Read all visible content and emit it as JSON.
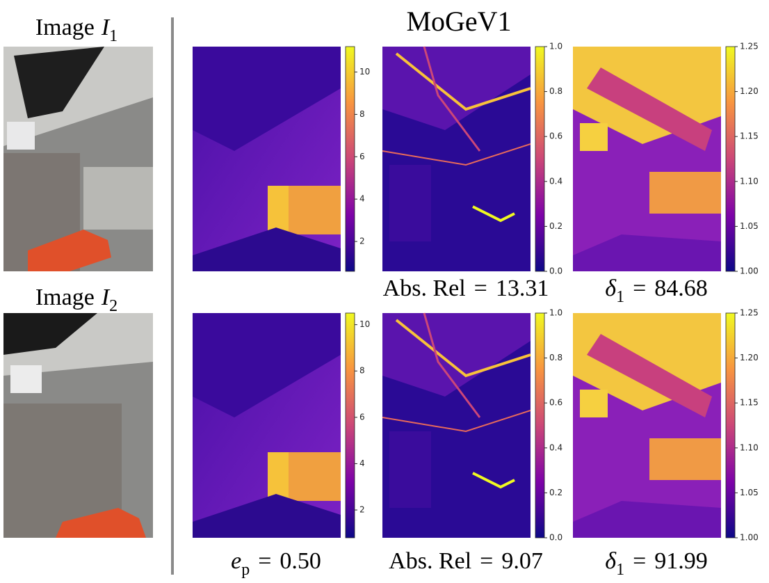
{
  "title": "MoGeV1",
  "inputs": [
    {
      "label": "Image",
      "symbol": "I",
      "subscript": "1"
    },
    {
      "label": "Image",
      "symbol": "I",
      "subscript": "2"
    }
  ],
  "rows": [
    {
      "panels": [
        {
          "colorbar": {
            "lim": [
              0.59,
              11.2
            ],
            "ticks": [
              2,
              4,
              6,
              8,
              10
            ]
          }
        },
        {
          "colorbar": {
            "lim": [
              0,
              1
            ],
            "ticks": [
              {
                "value": 0,
                "label": "0.0"
              },
              0.2,
              0.4,
              0.6,
              0.8,
              {
                "value": 1,
                "label": "1.0"
              }
            ]
          },
          "caption": {
            "text": "Abs. Rel",
            "op": "=",
            "value": "13.31"
          }
        },
        {
          "colorbar": {
            "lim": [
              1,
              1.25
            ],
            "ticks": [
              {
                "value": 1,
                "label": "1.00"
              },
              1.05,
              {
                "value": 1.1,
                "label": "1.10"
              },
              1.15,
              {
                "value": 1.2,
                "label": "1.20"
              },
              1.25
            ]
          },
          "caption": {
            "symbol": "δ",
            "subscript": "1",
            "op": "=",
            "value": "84.68"
          }
        }
      ]
    },
    {
      "panels": [
        {
          "colorbar": {
            "lim": [
              0.8,
              10.5
            ],
            "ticks": [
              2,
              4,
              6,
              8,
              10
            ]
          },
          "caption": {
            "symbol": "e",
            "subscript": "p",
            "op": "=",
            "value": "0.50"
          }
        },
        {
          "colorbar": {
            "lim": [
              0,
              1
            ],
            "ticks": [
              {
                "value": 0,
                "label": "0.0"
              },
              0.2,
              0.4,
              0.6,
              0.8,
              {
                "value": 1,
                "label": "1.0"
              }
            ]
          },
          "caption": {
            "text": "Abs. Rel",
            "op": "=",
            "value": "9.07"
          }
        },
        {
          "colorbar": {
            "lim": [
              1,
              1.25
            ],
            "ticks": [
              {
                "value": 1,
                "label": "1.00"
              },
              1.05,
              {
                "value": 1.1,
                "label": "1.10"
              },
              1.15,
              {
                "value": 1.2,
                "label": "1.20"
              },
              1.25
            ]
          },
          "caption": {
            "symbol": "δ",
            "subscript": "1",
            "op": "=",
            "value": "91.99"
          }
        }
      ]
    }
  ]
}
